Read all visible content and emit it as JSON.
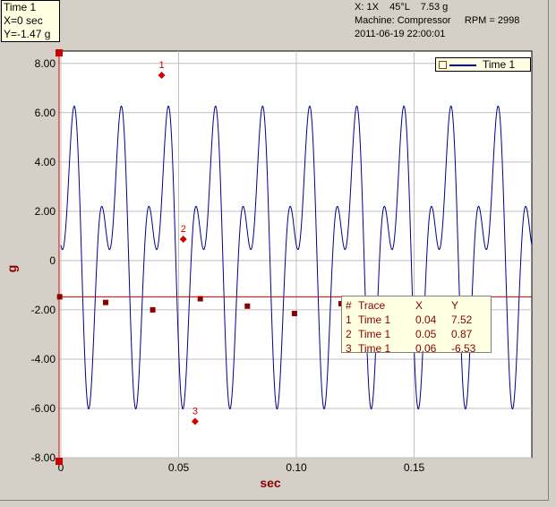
{
  "readout": {
    "line1": "Time 1",
    "line2": "X=0 sec",
    "line3": "Y=-1.47 g"
  },
  "header": {
    "line1": "X: 1X    45°L    7.53 g",
    "line2": "Machine: Compressor     RPM = 2998",
    "line3": "2011-06-19 22:00:01"
  },
  "legend": {
    "label": "Time 1"
  },
  "cursor_table": {
    "headers": [
      "#",
      "Trace",
      "X",
      "Y"
    ],
    "rows": [
      [
        "1",
        "Time 1",
        "0.04",
        "7.52"
      ],
      [
        "2",
        "Time 1",
        "0.05",
        "0.87"
      ],
      [
        "3",
        "Time 1",
        "0.06",
        "-6.53"
      ]
    ]
  },
  "colors": {
    "trace": "#00008b",
    "cursor": "#cc0000",
    "marker": "#8b0000",
    "grid": "#c0c0c0"
  },
  "chart_data": {
    "type": "line",
    "xlabel": "sec",
    "ylabel": "g",
    "xlim": [
      0,
      0.2
    ],
    "ylim": [
      -8,
      8.5
    ],
    "xticks": [
      0,
      0.05,
      0.1,
      0.15
    ],
    "xtick_labels": [
      "0",
      "0.05",
      "0.10",
      "0.15"
    ],
    "yticks": [
      8,
      6,
      4,
      2,
      0,
      -2,
      -4,
      -6,
      -8
    ],
    "ytick_labels": [
      "8.00",
      "6.00",
      "4.00",
      "2.00",
      "0",
      "-2.00",
      "-4.00",
      "-6.00",
      "-8.00"
    ],
    "grid": true,
    "legend_position": "top-right",
    "series": [
      {
        "name": "Time 1",
        "fundamental_period": 0.02,
        "peak": 7.53,
        "trough": -6.53
      }
    ],
    "cursor_y": -1.47,
    "cursor_markers": [
      {
        "label": "1",
        "x": 0.0428,
        "y": 7.52
      },
      {
        "label": "2",
        "x": 0.052,
        "y": 0.87
      },
      {
        "label": "3",
        "x": 0.057,
        "y": -6.53
      }
    ],
    "crossing_markers": [
      {
        "x": -0.0005,
        "y": -1.47
      },
      {
        "x": 0.019,
        "y": -1.7
      },
      {
        "x": 0.039,
        "y": -2.0
      },
      {
        "x": 0.0592,
        "y": -1.55
      },
      {
        "x": 0.0792,
        "y": -1.85
      },
      {
        "x": 0.0992,
        "y": -2.15
      },
      {
        "x": 0.119,
        "y": -1.75
      },
      {
        "x": 0.159,
        "y": -1.55
      }
    ]
  }
}
